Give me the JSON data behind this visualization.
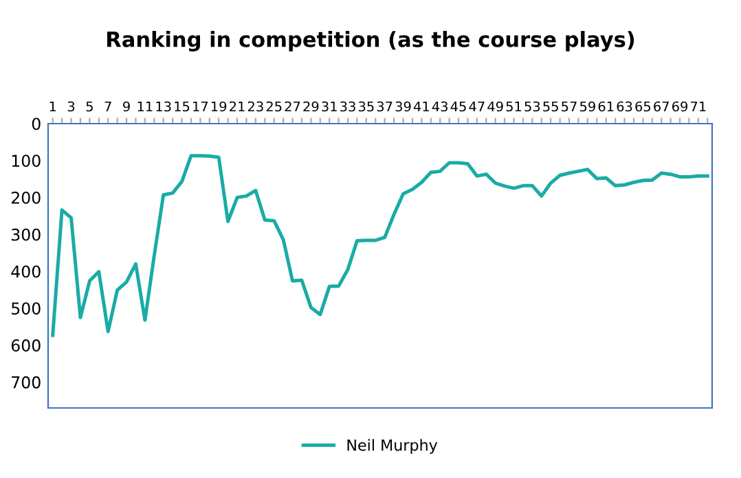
{
  "chart_data": {
    "type": "line",
    "title": "Ranking in competition (as the course plays)",
    "categories": [
      "1",
      null,
      "3",
      null,
      "5",
      null,
      "7",
      null,
      "9",
      null,
      "11",
      null,
      "13",
      null,
      "15",
      null,
      "17",
      null,
      "19",
      null,
      "21",
      null,
      "23",
      null,
      "25",
      null,
      "27",
      null,
      "29",
      null,
      "31",
      null,
      "33",
      null,
      "35",
      null,
      "37",
      null,
      "39",
      null,
      "41",
      null,
      "43",
      null,
      "45",
      null,
      "47",
      null,
      "49",
      null,
      "51",
      null,
      "53",
      null,
      "55",
      null,
      "57",
      null,
      "59",
      null,
      "61",
      null,
      "63",
      null,
      "65",
      null,
      "67",
      null,
      "69",
      null,
      "71",
      null
    ],
    "series": [
      {
        "name": "Neil Murphy",
        "color": "#1aaba6",
        "values": [
          573,
          234,
          255,
          525,
          426,
          401,
          563,
          451,
          429,
          380,
          532,
          358,
          193,
          188,
          157,
          87,
          87,
          88,
          91,
          265,
          200,
          196,
          181,
          261,
          263,
          314,
          426,
          424,
          498,
          517,
          441,
          440,
          395,
          317,
          316,
          316,
          308,
          246,
          190,
          178,
          159,
          132,
          129,
          106,
          106,
          109,
          142,
          137,
          161,
          169,
          175,
          168,
          168,
          196,
          161,
          140,
          134,
          129,
          124,
          149,
          147,
          168,
          166,
          159,
          154,
          153,
          134,
          137,
          144,
          144,
          142,
          142
        ]
      }
    ],
    "ylim": [
      770,
      0
    ],
    "yticks": [
      0,
      100,
      200,
      300,
      400,
      500,
      600,
      700
    ],
    "grid": false,
    "legend": "bottom",
    "marker": "none",
    "line_style": "solid"
  }
}
